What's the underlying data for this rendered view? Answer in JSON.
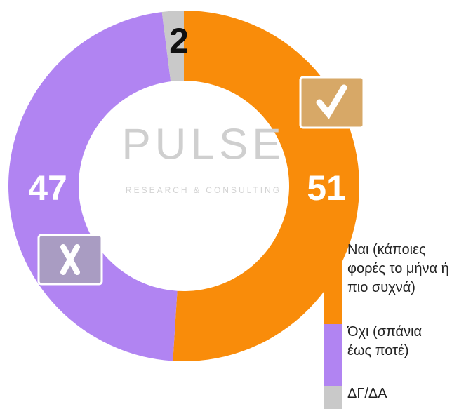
{
  "chart_data": {
    "type": "donut",
    "categories": [
      "Ναι (κάποιες φορές το μήνα ή πιο συχνά)",
      "Όχι (σπάνια έως ποτέ)",
      "ΔΓ/ΔΑ"
    ],
    "values": [
      51,
      47,
      2
    ],
    "colors": [
      "#f98c0a",
      "#b184f2",
      "#c9c9c9"
    ],
    "label_colors": [
      "#ffffff",
      "#ffffff",
      "#111111"
    ],
    "watermark": {
      "title": "PULSE",
      "subtitle": "RESEARCH & CONSULTING"
    }
  }
}
